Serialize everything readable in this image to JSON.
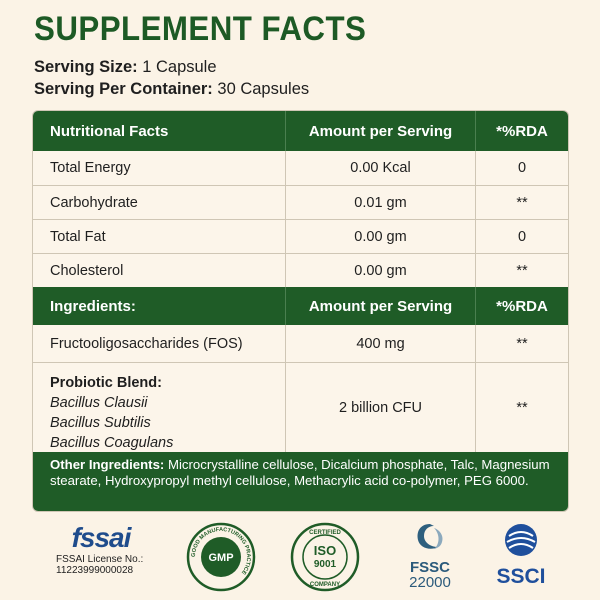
{
  "title": "SUPPLEMENT FACTS",
  "serving_size": {
    "label": "Serving Size:",
    "value": "1 Capsule"
  },
  "serving_per_container": {
    "label": "Serving Per Container:",
    "value": "30 Capsules"
  },
  "nutrition_header": {
    "c1": "Nutritional Facts",
    "c2": "Amount per Serving",
    "c3": "*%RDA"
  },
  "nutrition_rows": [
    {
      "name": "Total Energy",
      "amount": "0.00 Kcal",
      "rda": "0"
    },
    {
      "name": "Carbohydrate",
      "amount": "0.01 gm",
      "rda": "**"
    },
    {
      "name": "Total Fat",
      "amount": "0.00 gm",
      "rda": "0"
    },
    {
      "name": "Cholesterol",
      "amount": "0.00 gm",
      "rda": "**"
    }
  ],
  "ingredients_header": {
    "c1": "Ingredients:",
    "c2": "Amount per Serving",
    "c3": "*%RDA"
  },
  "ingredient_rows": [
    {
      "name": "Fructooligosaccharides (FOS)",
      "amount": "400 mg",
      "rda": "**"
    }
  ],
  "probiotic": {
    "title": "Probiotic Blend:",
    "strains": [
      "Bacillus Clausii",
      "Bacillus Subtilis",
      "Bacillus Coagulans"
    ],
    "amount": "2 billion CFU",
    "rda": "**"
  },
  "other_ingredients": {
    "label": "Other Ingredients:",
    "text": "Microcrystalline cellulose, Dicalcium phosphate, Talc, Magnesium stearate, Hydroxypropyl methyl cellulose, Methacrylic acid co-polymer, PEG 6000."
  },
  "logos": {
    "fssai": {
      "word": "fssai",
      "license_label": "FSSAI License No.:",
      "license_no": "11223999000028"
    },
    "gmp": {
      "center": "GMP",
      "ring": "GOOD MANUFACTURING PRACTICE"
    },
    "iso": {
      "top": "CERTIFIED",
      "center1": "ISO",
      "center2": "9001",
      "bottom": "COMPANY"
    },
    "fssc": {
      "line1": "FSSC",
      "line2": "22000"
    },
    "ssci": {
      "text": "SSCI"
    }
  },
  "colors": {
    "brand_green": "#1f5c27",
    "background": "#fbf3e6"
  }
}
